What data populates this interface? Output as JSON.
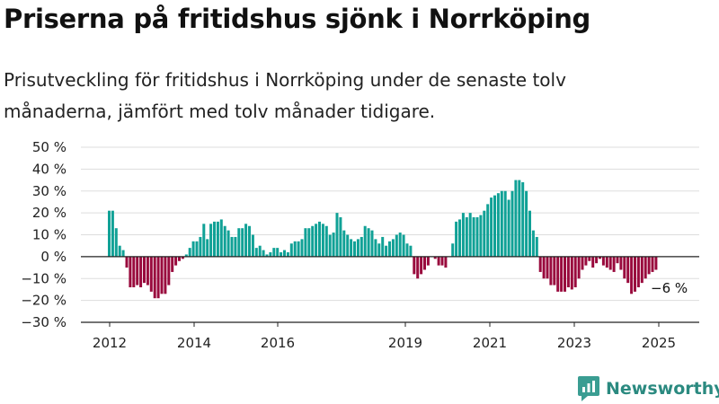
{
  "header": {
    "title": "Priserna på fritidshus sjönk i Norrköping",
    "subtitle": "Prisutveckling för fritidshus i Norrköping under de senaste tolv månaderna, jämfört med tolv månader tidigare."
  },
  "chart_data": {
    "type": "bar",
    "title": "Priserna på fritidshus sjönk i Norrköping",
    "xlabel": "",
    "ylabel": "",
    "ylim": [
      -30,
      50
    ],
    "y_ticks": [
      50,
      40,
      30,
      20,
      10,
      0,
      -10,
      -20,
      -30
    ],
    "y_tick_labels": [
      "50 %",
      "40 %",
      "30 %",
      "20 %",
      "10 %",
      "0 %",
      "−10 %",
      "−20 %",
      "−30 %"
    ],
    "x_tick_labels": [
      "2012",
      "2014",
      "2016",
      "2019",
      "2021",
      "2023",
      "2025"
    ],
    "grid": true,
    "colors": {
      "positive": "#10a196",
      "negative": "#990a3d",
      "zero_line": "#222222",
      "grid": "#dddddd"
    },
    "annotation": "−6 %",
    "series": [
      {
        "values": [
          21,
          21,
          13,
          5,
          3,
          -5,
          -14,
          -14,
          -13,
          -14,
          -12,
          -13,
          -16,
          -19,
          -19,
          -17,
          -17,
          -13,
          -7,
          -4,
          -2,
          -1,
          1,
          4,
          7,
          7,
          9,
          15,
          8,
          15,
          16,
          16,
          17,
          14,
          12,
          9,
          9,
          13,
          13,
          15,
          14,
          10,
          4,
          5,
          3,
          1,
          2,
          4,
          4,
          2,
          3,
          2,
          6,
          7,
          7,
          8,
          13,
          13,
          14,
          15,
          16,
          15,
          14,
          10,
          11,
          20,
          18,
          12,
          10,
          8,
          7,
          8,
          9,
          14,
          13,
          12,
          8,
          6,
          9,
          5,
          7,
          8,
          10,
          11,
          10,
          6,
          5,
          -8,
          -10,
          -8,
          -6,
          -4,
          0,
          -1,
          -4,
          -4,
          -5,
          0,
          6,
          16,
          17,
          20,
          18,
          20,
          18,
          18,
          19,
          21,
          24,
          27,
          28,
          29,
          30,
          30,
          26,
          30,
          35,
          35,
          34,
          30,
          21,
          12,
          9,
          -7,
          -10,
          -10,
          -13,
          -13,
          -16,
          -16,
          -16,
          -14,
          -15,
          -14,
          -10,
          -6,
          -4,
          -2,
          -5,
          -3,
          -1,
          -4,
          -5,
          -6,
          -7,
          -3,
          -6,
          -10,
          -12,
          -17,
          -16,
          -14,
          -12,
          -10,
          -8,
          -7,
          -6
        ]
      }
    ]
  },
  "branding": {
    "icon": "newsworthy-logo-icon",
    "name": "Newsworthy"
  }
}
